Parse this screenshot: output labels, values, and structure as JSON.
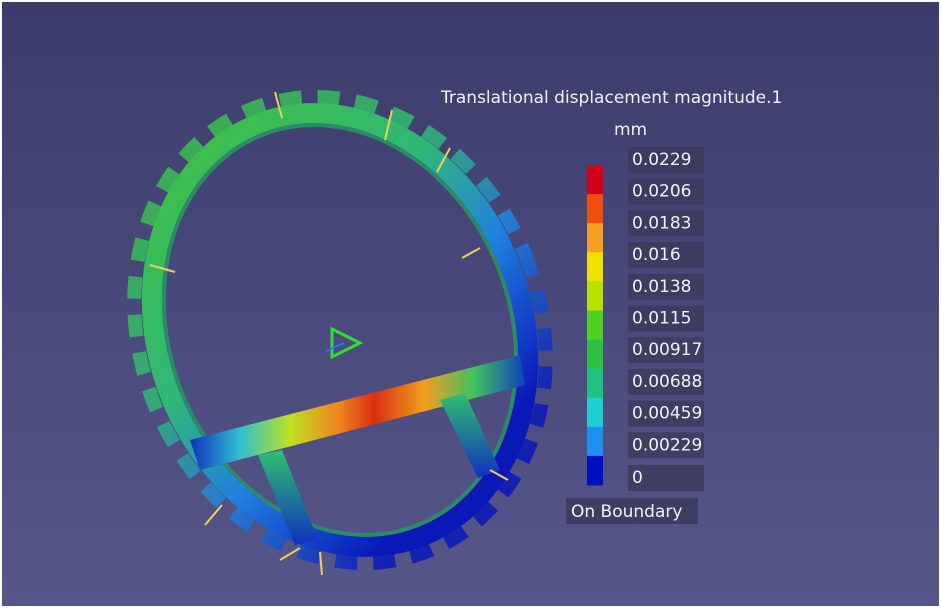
{
  "legend": {
    "title": "Translational displacement magnitude.1",
    "unit": "mm",
    "labels": [
      "0.0229",
      "0.0206",
      "0.0183",
      "0.016",
      "0.0138",
      "0.0115",
      "0.00917",
      "0.00688",
      "0.00459",
      "0.00229",
      "0"
    ],
    "footer": "On Boundary"
  }
}
